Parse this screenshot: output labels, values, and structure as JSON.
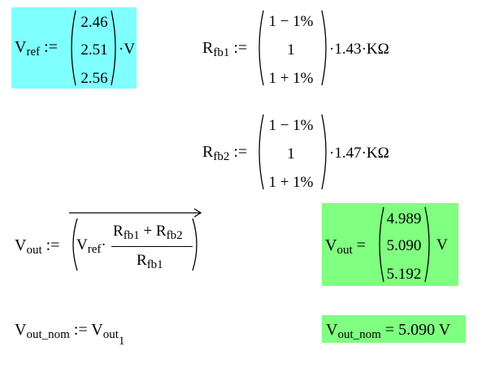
{
  "vref": {
    "name": "V",
    "sub": "ref",
    "op": ":=",
    "values": [
      "2.46",
      "2.51",
      "2.56"
    ],
    "unit": "·V",
    "highlight": "#80ffff"
  },
  "rfb1": {
    "name": "R",
    "sub": "fb1",
    "op": ":=",
    "values": [
      "1 − 1%",
      "1",
      "1 + 1%"
    ],
    "unit": "·1.43·KΩ"
  },
  "rfb2": {
    "name": "R",
    "sub": "fb2",
    "op": ":=",
    "values": [
      "1 − 1%",
      "1",
      "1 + 1%"
    ],
    "unit": "·1.47·KΩ"
  },
  "vout_def": {
    "name": "V",
    "sub": "out",
    "op": ":=",
    "vref_name": "V",
    "vref_sub": "ref",
    "dot": "·",
    "num_r1": "R",
    "num_r1_sub": "fb1",
    "plus": "+",
    "num_r2": "R",
    "num_r2_sub": "fb2",
    "den": "R",
    "den_sub": "fb1"
  },
  "vout_result": {
    "name": "V",
    "sub": "out",
    "op": "=",
    "values": [
      "4.989",
      "5.090",
      "5.192"
    ],
    "unit": "V",
    "highlight": "#80ff80"
  },
  "vout_nom_def": {
    "name": "V",
    "sub": "out_nom",
    "op": ":=",
    "rhs_name": "V",
    "rhs_sub": "out",
    "rhs_index": "1"
  },
  "vout_nom_result": {
    "name": "V",
    "sub": "out_nom",
    "op": "=",
    "value": "5.090",
    "unit": "V",
    "highlight": "#80ff80"
  }
}
